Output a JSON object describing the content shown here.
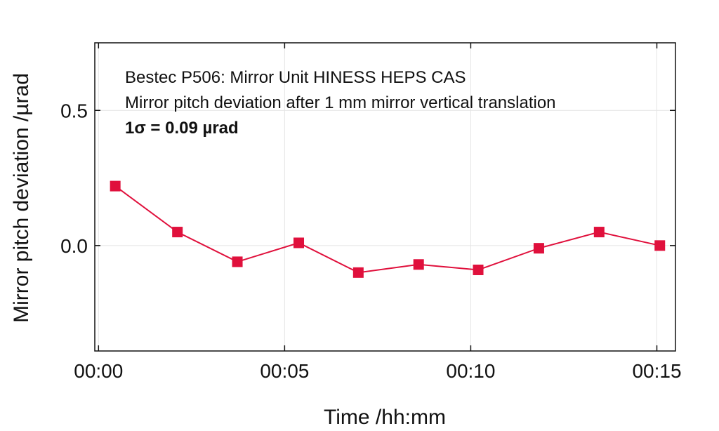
{
  "chart_data": {
    "type": "line",
    "title": "",
    "xlabel": "Time /hh:mm",
    "ylabel": "Mirror pitch deviation /µrad",
    "x_tick_labels": [
      "00:00",
      "00:05",
      "00:10",
      "00:15"
    ],
    "x_tick_values": [
      0,
      5,
      10,
      15
    ],
    "y_tick_labels": [
      "0.0",
      "0.5"
    ],
    "y_tick_values": [
      0.0,
      0.5
    ],
    "xlim": [
      -0.1,
      15.5
    ],
    "ylim": [
      -0.39,
      0.75
    ],
    "grid": true,
    "annotations": [
      "Bestec P506: Mirror Unit HINESS HEPS CAS",
      "Mirror pitch deviation after 1 mm mirror vertical translation",
      "1σ = 0.09 µrad"
    ],
    "series": [
      {
        "color": "#e0103c",
        "marker": "square",
        "x": [
          "00:00:27",
          "00:02:07",
          "00:03:44",
          "00:05:23",
          "00:06:59",
          "00:08:36",
          "00:10:12",
          "00:11:50",
          "00:13:27",
          "00:15:05"
        ],
        "x_minutes": [
          0.45,
          2.12,
          3.73,
          5.38,
          6.98,
          8.6,
          10.2,
          11.83,
          13.45,
          15.08
        ],
        "values": [
          0.22,
          0.05,
          -0.06,
          0.01,
          -0.1,
          -0.07,
          -0.09,
          -0.01,
          0.05,
          0.0
        ]
      }
    ]
  }
}
